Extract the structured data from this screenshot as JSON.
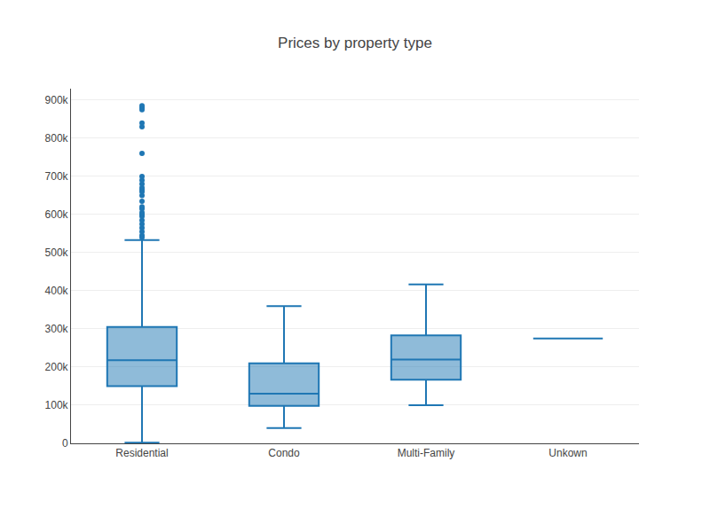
{
  "chart_data": {
    "type": "box",
    "title": "Prices by property type",
    "categories": [
      "Residential",
      "Condo",
      "Multi-Family",
      "Unkown"
    ],
    "lowerfence": [
      2000,
      40000,
      100000,
      275000
    ],
    "q1": [
      150000,
      98000,
      167000,
      275000
    ],
    "median": [
      218000,
      130000,
      220000,
      275000
    ],
    "q3": [
      305000,
      210000,
      283000,
      275000
    ],
    "upperfence": [
      533000,
      360000,
      417000,
      275000
    ],
    "outliers": [
      [
        540000,
        545000,
        555000,
        565000,
        575000,
        585000,
        595000,
        600000,
        605000,
        615000,
        620000,
        635000,
        650000,
        660000,
        665000,
        670000,
        680000,
        690000,
        700000,
        760000,
        830000,
        840000,
        875000,
        880000,
        885000
      ],
      [],
      [],
      []
    ],
    "color": "#1f77b4",
    "ylim": [
      0,
      930000
    ],
    "yticks": [
      0,
      {
        "value": 100000,
        "label": "100k"
      },
      {
        "value": 200000,
        "label": "200k"
      },
      {
        "value": 300000,
        "label": "300k"
      },
      {
        "value": 400000,
        "label": "400k"
      },
      {
        "value": 500000,
        "label": "500k"
      },
      {
        "value": 600000,
        "label": "600k"
      },
      {
        "value": 700000,
        "label": "700k"
      },
      {
        "value": 800000,
        "label": "800k"
      },
      {
        "value": 900000,
        "label": "900k"
      }
    ],
    "grid": true
  }
}
